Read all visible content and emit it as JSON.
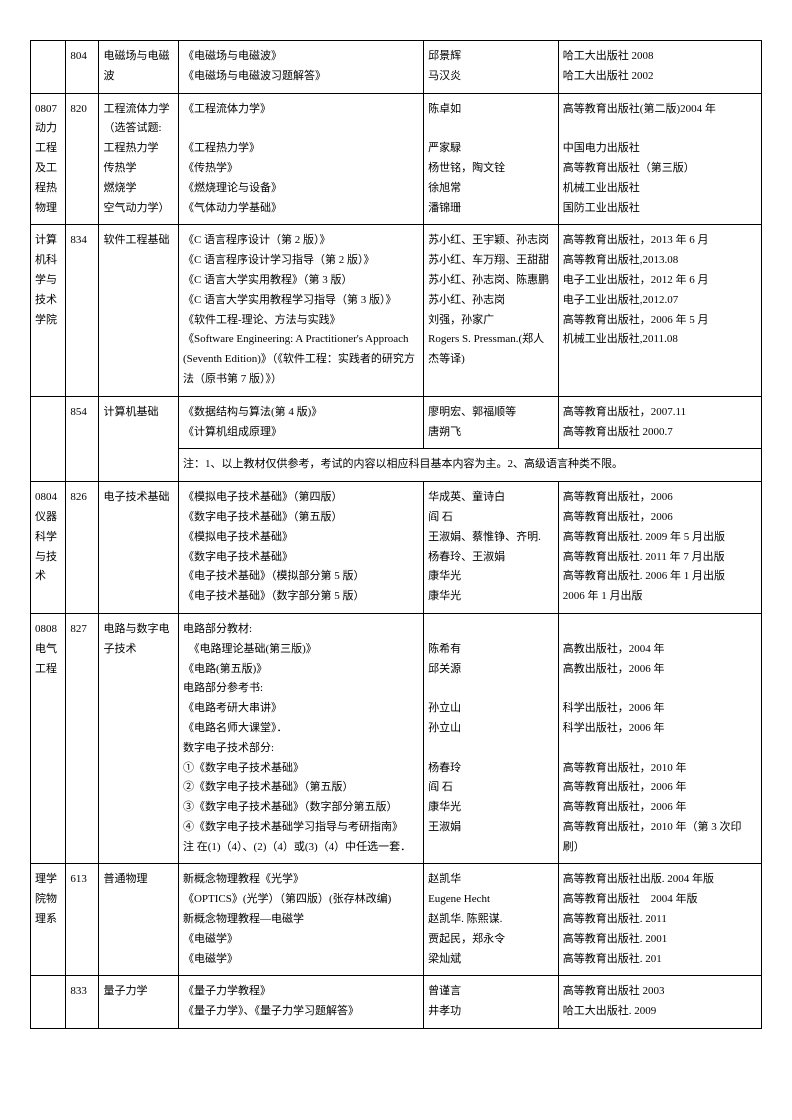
{
  "rows": [
    {
      "c1": "",
      "c2": "804",
      "c3": "电磁场与电磁波",
      "c4": "《电磁场与电磁波》\n《电磁场与电磁波习题解答》",
      "c5": "邱景辉\n马汉炎",
      "c6": "哈工大出版社 2008\n哈工大出版社 2002"
    },
    {
      "c1": "0807动力工程及工程热物理",
      "c2": "820",
      "c3": "工程流体力学（选答试题:\n工程热力学\n传热学\n燃烧学\n空气动力学）",
      "c4": "《工程流体力学》\n\n《工程热力学》\n《传热学》\n《燃烧理论与设备》\n《气体动力学基础》",
      "c5": "陈卓如\n\n严家騄\n杨世铭，陶文铨\n徐旭常\n潘锦珊",
      "c6": "高等教育出版社(第二版)2004 年\n\n中国电力出版社\n高等教育出版社（第三版）\n机械工业出版社\n国防工业出版社"
    },
    {
      "c1": "计算机科学与技术学院",
      "c2": "834",
      "c3": "软件工程基础",
      "c4": "《C 语言程序设计（第 2 版）》\n《C 语言程序设计学习指导（第 2 版）》\n《C 语言大学实用教程》（第 3 版）\n《C 语言大学实用教程学习指导（第 3 版）》\n《软件工程-理论、方法与实践》\n《Software Engineering: A Practitioner's Approach (Seventh Edition)》（《软件工程：实践者的研究方法（原书第 7 版）》）",
      "c5": "苏小红、王宇颖、孙志岗\n苏小红、车万翔、王甜甜\n苏小红、孙志岗、陈惠鹏\n苏小红、孙志岗\n刘强，孙家广\nRogers S. Pressman.(郑人杰等译)",
      "c6": "高等教育出版社，2013 年 6 月\n高等教育出版社,2013.08\n电子工业出版社，2012 年 6 月\n电子工业出版社,2012.07\n高等教育出版社，2006 年 5 月\n机械工业出版社,2011.08"
    },
    {
      "c1": "",
      "c2": "854",
      "c3": "计算机基础",
      "c4": "《数据结构与算法(第 4 版)》\n《计算机组成原理》\n注：1、以上教材仅供参考，考试的内容以相应科目基本内容为主。2、高级语言种类不限。",
      "c5": "廖明宏、郭福顺等\n唐朔飞",
      "c6": "高等教育出版社，2007.11\n高等教育出版社 2000.7"
    },
    {
      "c1": "0804仪器科学与技术",
      "c2": "826",
      "c3": "电子技术基础",
      "c4": "《模拟电子技术基础》（第四版）\n《数字电子技术基础》（第五版）\n《模拟电子技术基础》\n《数字电子技术基础》\n《电子技术基础》（模拟部分第 5 版）\n《电子技术基础》（数字部分第 5 版）",
      "c5": "华成英、童诗白\n阎 石\n王淑娟、蔡惟铮、齐明.\n杨春玲、王淑娟\n康华光\n康华光",
      "c6": "高等教育出版社，2006\n高等教育出版社，2006\n高等教育出版社. 2009 年 5 月出版\n高等教育出版社. 2011 年 7 月出版\n高等教育出版社. 2006 年 1 月出版\n2006 年 1 月出版"
    },
    {
      "c1": "0808电气工程",
      "c2": "827",
      "c3": "电路与数字电子技术",
      "c4": "电路部分教材:\n　《电路理论基础(第三版)》\n《电路(第五版)》\n电路部分参考书:\n《电路考研大串讲》\n《电路名师大课堂》．\n数字电子技术部分:\n①《数字电子技术基础》\n②《数字电子技术基础》（第五版）\n③《数字电子技术基础》（数字部分第五版）\n④《数字电子技术基础学习指导与考研指南》\n注 在(1)（4）、(2)（4）或(3)（4）中任选一套．",
      "c5": "\n陈希有\n邱关源\n\n孙立山\n孙立山\n\n杨春玲\n阎 石\n康华光\n王淑娟",
      "c6": "\n高教出版社，2004 年\n高教出版社，2006 年\n\n科学出版社，2006 年\n科学出版社，2006 年\n\n高等教育出版社，2010 年\n高等教育出版社，2006 年\n高等教育出版社，2006 年\n高等教育出版社，2010 年（第 3 次印刷）"
    },
    {
      "c1": "理学院物理系",
      "c2": "613",
      "c3": "普通物理",
      "c4": "新概念物理教程《光学》\n《OPTICS》(光学）（第四版）(张存林改编)\n新概念物理教程—电磁学\n《电磁学》\n《电磁学》",
      "c5": "赵凯华\nEugene Hecht\n赵凯华. 陈熙谋.\n贾起民，郑永令\n梁灿斌",
      "c6": "高等教育出版社出版. 2004 年版\n高等教育出版社　2004 年版\n高等教育出版社. 2011\n高等教育出版社. 2001\n高等教育出版社. 201"
    },
    {
      "c1": "",
      "c2": "833",
      "c3": "量子力学",
      "c4": "《量子力学教程》\n《量子力学》、《量子力学习题解答》",
      "c5": "曾谨言\n井孝功",
      "c6": "高等教育出版社 2003\n哈工大出版社. 2009"
    }
  ]
}
